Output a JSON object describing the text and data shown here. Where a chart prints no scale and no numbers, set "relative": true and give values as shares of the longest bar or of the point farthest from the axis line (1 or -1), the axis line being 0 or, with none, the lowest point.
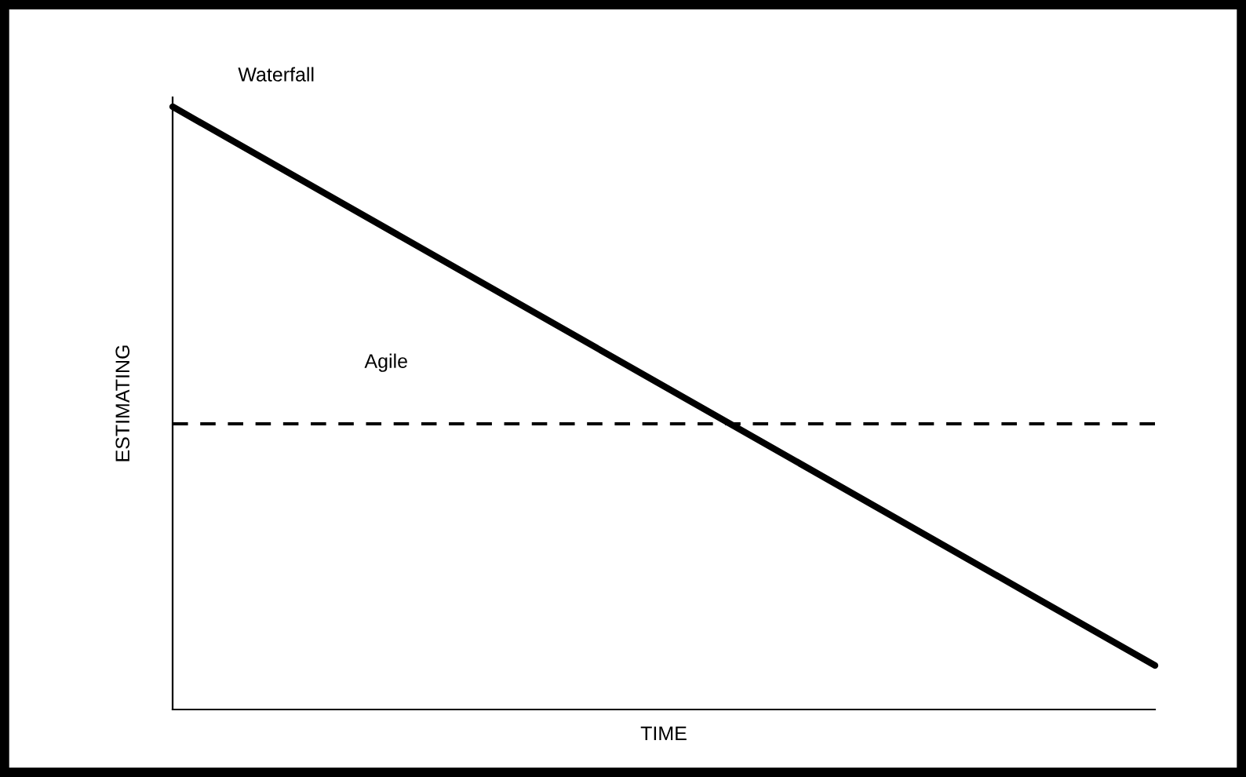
{
  "chart_data": {
    "type": "line",
    "relative": true,
    "xlabel": "TIME",
    "ylabel": "ESTIMATING",
    "categories": [
      null,
      null
    ],
    "series": [
      {
        "name": "Waterfall",
        "color": "#000000",
        "line_style": "solid",
        "values": [
          1,
          0.073
        ]
      },
      {
        "name": "Agile",
        "color": "#000000",
        "line_style": "dashed",
        "values": [
          0.474,
          0.474
        ]
      }
    ],
    "grid": false,
    "legend": false
  }
}
